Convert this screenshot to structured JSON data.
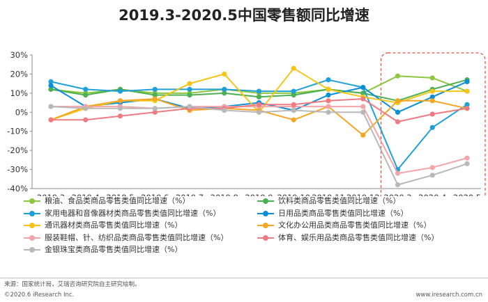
{
  "title": "2019.3-2020.5中国零售额同比增速",
  "source": "来源：国家统计局，艾瑞咨询研究院自主研究绘制。",
  "footer": {
    "left": "©2020.6 iResearch Inc.",
    "right": "www.iresearch.com.cn"
  },
  "chart_data": {
    "type": "line",
    "categories": [
      "2019.3",
      "2019.4",
      "2019.5",
      "2019.6",
      "2019.7",
      "2019.8",
      "2019.9",
      "2019.10",
      "2019.11",
      "2019.12",
      "2020.3",
      "2020.4",
      "2020.5"
    ],
    "y_ticks": [
      "30%",
      "20%",
      "10%",
      "0%",
      "-10%",
      "-20%",
      "-30%",
      "-40%"
    ],
    "ylim": [
      -40,
      30
    ],
    "grid": false,
    "highlight": {
      "from": "2020.3",
      "to": "2020.5",
      "color": "#e74c3c"
    },
    "series": [
      {
        "name": "粮油、食品类商品零售类值同比增速（%）",
        "color": "#8dc63f",
        "values": [
          12,
          10,
          12,
          10,
          10,
          12,
          10,
          10,
          12,
          10,
          19,
          18,
          11
        ]
      },
      {
        "name": "饮料类商品零售类值同比增速（%）",
        "color": "#4caf50",
        "values": [
          12,
          9,
          12,
          9,
          9,
          10,
          8,
          9,
          12,
          10,
          6,
          12,
          17
        ]
      },
      {
        "name": "家用电器和音像器材类商品零售类值同比增速（%）",
        "color": "#1fa0d8",
        "values": [
          16,
          12,
          11,
          12,
          12,
          12,
          11,
          11,
          17,
          13,
          -30,
          -8,
          4
        ]
      },
      {
        "name": "日用品类商品零售类值同比增速（%）",
        "color": "#0a8fd6",
        "values": [
          14,
          3,
          5,
          7,
          2,
          3,
          5,
          1,
          9,
          13,
          0,
          8,
          16
        ]
      },
      {
        "name": "通讯器材类商品零售类值同比增速（%）",
        "color": "#f5c518",
        "values": [
          -4,
          2,
          6,
          6,
          15,
          20,
          0,
          23,
          12,
          8,
          5,
          11,
          11
        ]
      },
      {
        "name": "文化办公用品类商品零售类值同比增速（%）",
        "color": "#f5a623",
        "values": [
          -4,
          3,
          6,
          7,
          1,
          2,
          1,
          -4,
          3,
          -12,
          6,
          6,
          2
        ]
      },
      {
        "name": "服装鞋帽、针、纺织品类商品零售类值同比增速（%）",
        "color": "#f4a3a8",
        "values": [
          3,
          3,
          3,
          2,
          3,
          3,
          3,
          3,
          3,
          3,
          -32,
          -29,
          -24
        ]
      },
      {
        "name": "体育、娱乐用品类商品零售类值同比增速（%）",
        "color": "#ef7b82",
        "values": [
          -4,
          -4,
          -2,
          0,
          2,
          2,
          4,
          4,
          6,
          7,
          -5,
          -1,
          2
        ]
      },
      {
        "name": "金银珠宝类商品零售类值同比增速（%）",
        "color": "#b8b8b8",
        "values": [
          3,
          2,
          2,
          2,
          3,
          1,
          0,
          1,
          0,
          0,
          -38,
          -33,
          -27
        ]
      }
    ]
  }
}
